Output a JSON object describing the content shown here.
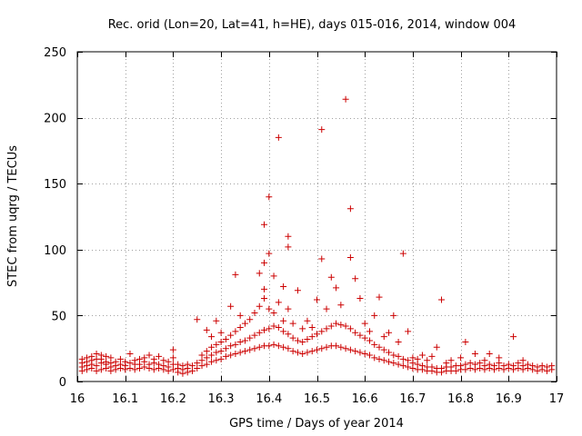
{
  "chart_data": {
    "type": "scatter",
    "title": "Rec. orid (Lon=20, Lat=41, h=HE), days 015-016, 2014, window 004",
    "xlabel": "GPS time / Days of year 2014",
    "ylabel": "STEC from uqrg / TECUs",
    "xlim": [
      16,
      17
    ],
    "ylim": [
      0,
      250
    ],
    "xticks": [
      16,
      16.1,
      16.2,
      16.3,
      16.4,
      16.5,
      16.6,
      16.7,
      16.8,
      16.9,
      17
    ],
    "xtick_labels": [
      "16",
      "16.1",
      "16.2",
      "16.3",
      "16.4",
      "16.5",
      "16.6",
      "16.7",
      "16.8",
      "16.9",
      "17"
    ],
    "yticks": [
      0,
      50,
      100,
      150,
      200,
      250
    ],
    "ytick_labels": [
      "0",
      "50",
      "100",
      "150",
      "200",
      "250"
    ],
    "grid": true,
    "marker": "+",
    "color": "#cc0000",
    "series": [
      {
        "name": "STEC",
        "points": [
          [
            16.01,
            8
          ],
          [
            16.01,
            11
          ],
          [
            16.01,
            14
          ],
          [
            16.01,
            17
          ],
          [
            16.02,
            9
          ],
          [
            16.02,
            12
          ],
          [
            16.02,
            15
          ],
          [
            16.02,
            18
          ],
          [
            16.03,
            10
          ],
          [
            16.03,
            13
          ],
          [
            16.03,
            16
          ],
          [
            16.03,
            19
          ],
          [
            16.04,
            8
          ],
          [
            16.04,
            12
          ],
          [
            16.04,
            17
          ],
          [
            16.04,
            21
          ],
          [
            16.05,
            9
          ],
          [
            16.05,
            14
          ],
          [
            16.05,
            17
          ],
          [
            16.05,
            20
          ],
          [
            16.06,
            10
          ],
          [
            16.06,
            13
          ],
          [
            16.06,
            15
          ],
          [
            16.06,
            19
          ],
          [
            16.07,
            8
          ],
          [
            16.07,
            11
          ],
          [
            16.07,
            14
          ],
          [
            16.07,
            18
          ],
          [
            16.08,
            9
          ],
          [
            16.08,
            12
          ],
          [
            16.08,
            15
          ],
          [
            16.09,
            10
          ],
          [
            16.09,
            13
          ],
          [
            16.09,
            17
          ],
          [
            16.1,
            9
          ],
          [
            16.1,
            12
          ],
          [
            16.1,
            15
          ],
          [
            16.11,
            10
          ],
          [
            16.11,
            14
          ],
          [
            16.11,
            21
          ],
          [
            16.12,
            9
          ],
          [
            16.12,
            13
          ],
          [
            16.12,
            16
          ],
          [
            16.13,
            10
          ],
          [
            16.13,
            13
          ],
          [
            16.13,
            17
          ],
          [
            16.14,
            11
          ],
          [
            16.14,
            15
          ],
          [
            16.14,
            18
          ],
          [
            16.15,
            10
          ],
          [
            16.15,
            13
          ],
          [
            16.15,
            20
          ],
          [
            16.16,
            9
          ],
          [
            16.16,
            14
          ],
          [
            16.16,
            17
          ],
          [
            16.17,
            10
          ],
          [
            16.17,
            13
          ],
          [
            16.17,
            19
          ],
          [
            16.18,
            9
          ],
          [
            16.18,
            12
          ],
          [
            16.18,
            16
          ],
          [
            16.19,
            8
          ],
          [
            16.19,
            11
          ],
          [
            16.19,
            15
          ],
          [
            16.2,
            9
          ],
          [
            16.2,
            13
          ],
          [
            16.2,
            18
          ],
          [
            16.2,
            24
          ],
          [
            16.21,
            7
          ],
          [
            16.21,
            10
          ],
          [
            16.21,
            13
          ],
          [
            16.22,
            6
          ],
          [
            16.22,
            9
          ],
          [
            16.22,
            12
          ],
          [
            16.23,
            7
          ],
          [
            16.23,
            10
          ],
          [
            16.23,
            13
          ],
          [
            16.24,
            8
          ],
          [
            16.24,
            12
          ],
          [
            16.25,
            10
          ],
          [
            16.25,
            14
          ],
          [
            16.25,
            47
          ],
          [
            16.26,
            12
          ],
          [
            16.26,
            16
          ],
          [
            16.26,
            20
          ],
          [
            16.27,
            13
          ],
          [
            16.27,
            18
          ],
          [
            16.27,
            23
          ],
          [
            16.27,
            39
          ],
          [
            16.28,
            15
          ],
          [
            16.28,
            20
          ],
          [
            16.28,
            26
          ],
          [
            16.28,
            34
          ],
          [
            16.29,
            16
          ],
          [
            16.29,
            22
          ],
          [
            16.29,
            28
          ],
          [
            16.29,
            46
          ],
          [
            16.3,
            17
          ],
          [
            16.3,
            23
          ],
          [
            16.3,
            30
          ],
          [
            16.3,
            37
          ],
          [
            16.31,
            19
          ],
          [
            16.31,
            25
          ],
          [
            16.31,
            32
          ],
          [
            16.32,
            20
          ],
          [
            16.32,
            27
          ],
          [
            16.32,
            35
          ],
          [
            16.32,
            57
          ],
          [
            16.33,
            21
          ],
          [
            16.33,
            28
          ],
          [
            16.33,
            38
          ],
          [
            16.33,
            81
          ],
          [
            16.34,
            22
          ],
          [
            16.34,
            30
          ],
          [
            16.34,
            41
          ],
          [
            16.34,
            50
          ],
          [
            16.35,
            23
          ],
          [
            16.35,
            31
          ],
          [
            16.35,
            44
          ],
          [
            16.36,
            24
          ],
          [
            16.36,
            33
          ],
          [
            16.36,
            47
          ],
          [
            16.37,
            25
          ],
          [
            16.37,
            35
          ],
          [
            16.37,
            52
          ],
          [
            16.38,
            26
          ],
          [
            16.38,
            37
          ],
          [
            16.38,
            57
          ],
          [
            16.38,
            82
          ],
          [
            16.39,
            27
          ],
          [
            16.39,
            39
          ],
          [
            16.39,
            63
          ],
          [
            16.39,
            70
          ],
          [
            16.39,
            90
          ],
          [
            16.39,
            119
          ],
          [
            16.4,
            27
          ],
          [
            16.4,
            40
          ],
          [
            16.4,
            55
          ],
          [
            16.4,
            97
          ],
          [
            16.4,
            140
          ],
          [
            16.41,
            28
          ],
          [
            16.41,
            42
          ],
          [
            16.41,
            52
          ],
          [
            16.41,
            80
          ],
          [
            16.42,
            27
          ],
          [
            16.42,
            41
          ],
          [
            16.42,
            60
          ],
          [
            16.42,
            185
          ],
          [
            16.43,
            26
          ],
          [
            16.43,
            38
          ],
          [
            16.43,
            46
          ],
          [
            16.43,
            72
          ],
          [
            16.44,
            25
          ],
          [
            16.44,
            36
          ],
          [
            16.44,
            55
          ],
          [
            16.44,
            102
          ],
          [
            16.44,
            110
          ],
          [
            16.45,
            23
          ],
          [
            16.45,
            33
          ],
          [
            16.45,
            44
          ],
          [
            16.46,
            22
          ],
          [
            16.46,
            31
          ],
          [
            16.46,
            69
          ],
          [
            16.47,
            21
          ],
          [
            16.47,
            30
          ],
          [
            16.47,
            40
          ],
          [
            16.48,
            22
          ],
          [
            16.48,
            32
          ],
          [
            16.48,
            46
          ],
          [
            16.49,
            23
          ],
          [
            16.49,
            34
          ],
          [
            16.49,
            41
          ],
          [
            16.5,
            24
          ],
          [
            16.5,
            36
          ],
          [
            16.5,
            62
          ],
          [
            16.51,
            25
          ],
          [
            16.51,
            38
          ],
          [
            16.51,
            93
          ],
          [
            16.51,
            191
          ],
          [
            16.52,
            26
          ],
          [
            16.52,
            40
          ],
          [
            16.52,
            55
          ],
          [
            16.53,
            27
          ],
          [
            16.53,
            42
          ],
          [
            16.53,
            79
          ],
          [
            16.54,
            27
          ],
          [
            16.54,
            44
          ],
          [
            16.54,
            71
          ],
          [
            16.55,
            26
          ],
          [
            16.55,
            43
          ],
          [
            16.55,
            58
          ],
          [
            16.56,
            25
          ],
          [
            16.56,
            42
          ],
          [
            16.56,
            214
          ],
          [
            16.57,
            24
          ],
          [
            16.57,
            40
          ],
          [
            16.57,
            94
          ],
          [
            16.57,
            131
          ],
          [
            16.58,
            23
          ],
          [
            16.58,
            37
          ],
          [
            16.58,
            78
          ],
          [
            16.59,
            22
          ],
          [
            16.59,
            35
          ],
          [
            16.59,
            63
          ],
          [
            16.6,
            21
          ],
          [
            16.6,
            33
          ],
          [
            16.6,
            44
          ],
          [
            16.61,
            20
          ],
          [
            16.61,
            31
          ],
          [
            16.61,
            38
          ],
          [
            16.62,
            18
          ],
          [
            16.62,
            28
          ],
          [
            16.62,
            50
          ],
          [
            16.63,
            17
          ],
          [
            16.63,
            26
          ],
          [
            16.63,
            64
          ],
          [
            16.64,
            16
          ],
          [
            16.64,
            24
          ],
          [
            16.64,
            34
          ],
          [
            16.65,
            15
          ],
          [
            16.65,
            22
          ],
          [
            16.65,
            37
          ],
          [
            16.66,
            14
          ],
          [
            16.66,
            20
          ],
          [
            16.66,
            50
          ],
          [
            16.67,
            13
          ],
          [
            16.67,
            19
          ],
          [
            16.67,
            30
          ],
          [
            16.68,
            12
          ],
          [
            16.68,
            17
          ],
          [
            16.68,
            97
          ],
          [
            16.69,
            11
          ],
          [
            16.69,
            16
          ],
          [
            16.69,
            38
          ],
          [
            16.7,
            10
          ],
          [
            16.7,
            14
          ],
          [
            16.7,
            18
          ],
          [
            16.71,
            9
          ],
          [
            16.71,
            13
          ],
          [
            16.71,
            17
          ],
          [
            16.72,
            9
          ],
          [
            16.72,
            12
          ],
          [
            16.72,
            20
          ],
          [
            16.73,
            8
          ],
          [
            16.73,
            11
          ],
          [
            16.73,
            16
          ],
          [
            16.74,
            8
          ],
          [
            16.74,
            11
          ],
          [
            16.74,
            19
          ],
          [
            16.75,
            7
          ],
          [
            16.75,
            10
          ],
          [
            16.75,
            26
          ],
          [
            16.76,
            7
          ],
          [
            16.76,
            10
          ],
          [
            16.76,
            62
          ],
          [
            16.77,
            8
          ],
          [
            16.77,
            11
          ],
          [
            16.77,
            14
          ],
          [
            16.78,
            8
          ],
          [
            16.78,
            11
          ],
          [
            16.78,
            16
          ],
          [
            16.79,
            8
          ],
          [
            16.79,
            12
          ],
          [
            16.8,
            9
          ],
          [
            16.8,
            12
          ],
          [
            16.8,
            18
          ],
          [
            16.81,
            9
          ],
          [
            16.81,
            13
          ],
          [
            16.81,
            30
          ],
          [
            16.82,
            10
          ],
          [
            16.82,
            14
          ],
          [
            16.83,
            9
          ],
          [
            16.83,
            13
          ],
          [
            16.83,
            21
          ],
          [
            16.84,
            10
          ],
          [
            16.84,
            14
          ],
          [
            16.85,
            9
          ],
          [
            16.85,
            12
          ],
          [
            16.85,
            16
          ],
          [
            16.86,
            10
          ],
          [
            16.86,
            13
          ],
          [
            16.86,
            21
          ],
          [
            16.87,
            9
          ],
          [
            16.87,
            12
          ],
          [
            16.88,
            10
          ],
          [
            16.88,
            14
          ],
          [
            16.88,
            18
          ],
          [
            16.89,
            9
          ],
          [
            16.89,
            12
          ],
          [
            16.9,
            10
          ],
          [
            16.9,
            13
          ],
          [
            16.91,
            9
          ],
          [
            16.91,
            12
          ],
          [
            16.91,
            34
          ],
          [
            16.92,
            10
          ],
          [
            16.92,
            14
          ],
          [
            16.93,
            9
          ],
          [
            16.93,
            12
          ],
          [
            16.93,
            16
          ],
          [
            16.94,
            10
          ],
          [
            16.94,
            13
          ],
          [
            16.95,
            9
          ],
          [
            16.95,
            12
          ],
          [
            16.96,
            8
          ],
          [
            16.96,
            11
          ],
          [
            16.97,
            9
          ],
          [
            16.97,
            12
          ],
          [
            16.98,
            8
          ],
          [
            16.98,
            11
          ],
          [
            16.99,
            9
          ],
          [
            16.99,
            12
          ]
        ]
      }
    ]
  }
}
